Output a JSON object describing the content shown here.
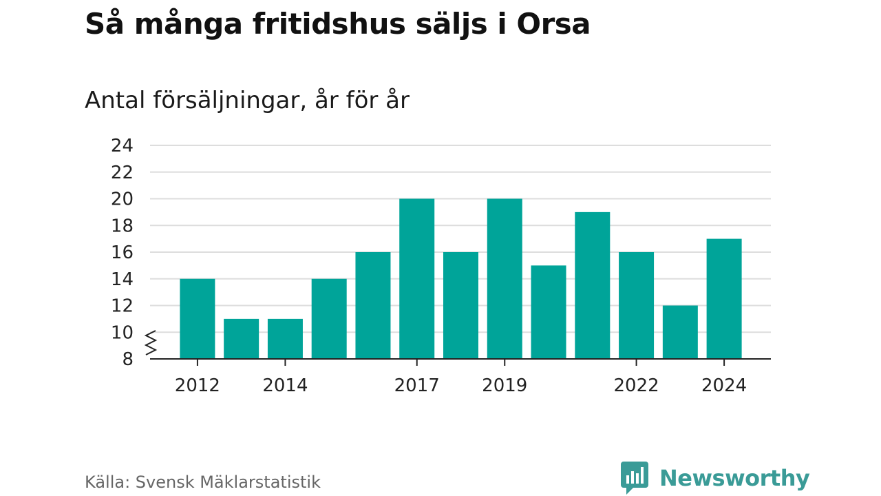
{
  "title": "Så många fritidshus säljs i Orsa",
  "subtitle": "Antal försäljningar, år för år",
  "source": "Källa: Svensk Mäklarstatistik",
  "brand": {
    "name": "Newsworthy",
    "color": "#3a9b97"
  },
  "colors": {
    "bar": "#00a499",
    "grid": "#dddddd",
    "axis": "#222222"
  },
  "chart_data": {
    "type": "bar",
    "categories": [
      "2012",
      "2013",
      "2014",
      "2015",
      "2016",
      "2017",
      "2018",
      "2019",
      "2020",
      "2021",
      "2022",
      "2023",
      "2024"
    ],
    "values": [
      14,
      11,
      11,
      14,
      16,
      20,
      16,
      20,
      15,
      19,
      16,
      12,
      17
    ],
    "x_tick_labels": [
      "2012",
      "2014",
      "2017",
      "2019",
      "2022",
      "2024"
    ],
    "y_ticks": [
      8,
      10,
      12,
      14,
      16,
      18,
      20,
      22,
      24
    ],
    "ylim": [
      8,
      24
    ],
    "axis_break": true,
    "grid": true,
    "legend": "none",
    "title": "Så många fritidshus säljs i Orsa",
    "subtitle": "Antal försäljningar, år för år",
    "xlabel": "",
    "ylabel": ""
  }
}
